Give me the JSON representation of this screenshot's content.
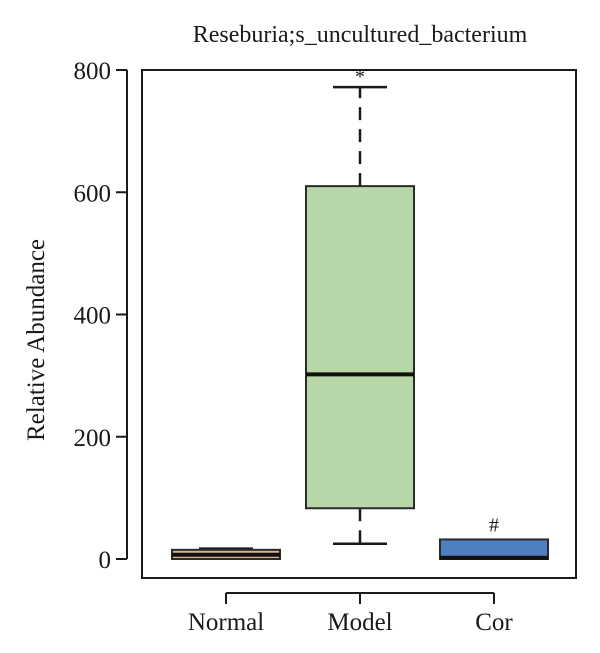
{
  "chart_data": {
    "type": "box",
    "title": "Reseburia;s_uncultured_bacterium",
    "xlabel": "",
    "ylabel": "Relative Abundance",
    "ylim": [
      -30,
      800
    ],
    "yticks": [
      0,
      200,
      400,
      600,
      800
    ],
    "grid": false,
    "legend": "none",
    "categories": [
      "Normal",
      "Model",
      "Cor"
    ],
    "boxes": [
      {
        "category": "Normal",
        "whisker_low": 0,
        "q1": 0,
        "median": 7,
        "q3": 15,
        "whisker_high": 17,
        "color": "#d9b38c",
        "annotation": ""
      },
      {
        "category": "Model",
        "whisker_low": 25,
        "q1": 83,
        "median": 302,
        "q3": 610,
        "whisker_high": 772,
        "color": "#b7d7a8",
        "annotation": "*"
      },
      {
        "category": "Cor",
        "whisker_low": 0,
        "q1": 0,
        "median": 2,
        "q3": 32,
        "whisker_high": 32,
        "color": "#4f7fc1",
        "annotation": "#"
      }
    ]
  }
}
